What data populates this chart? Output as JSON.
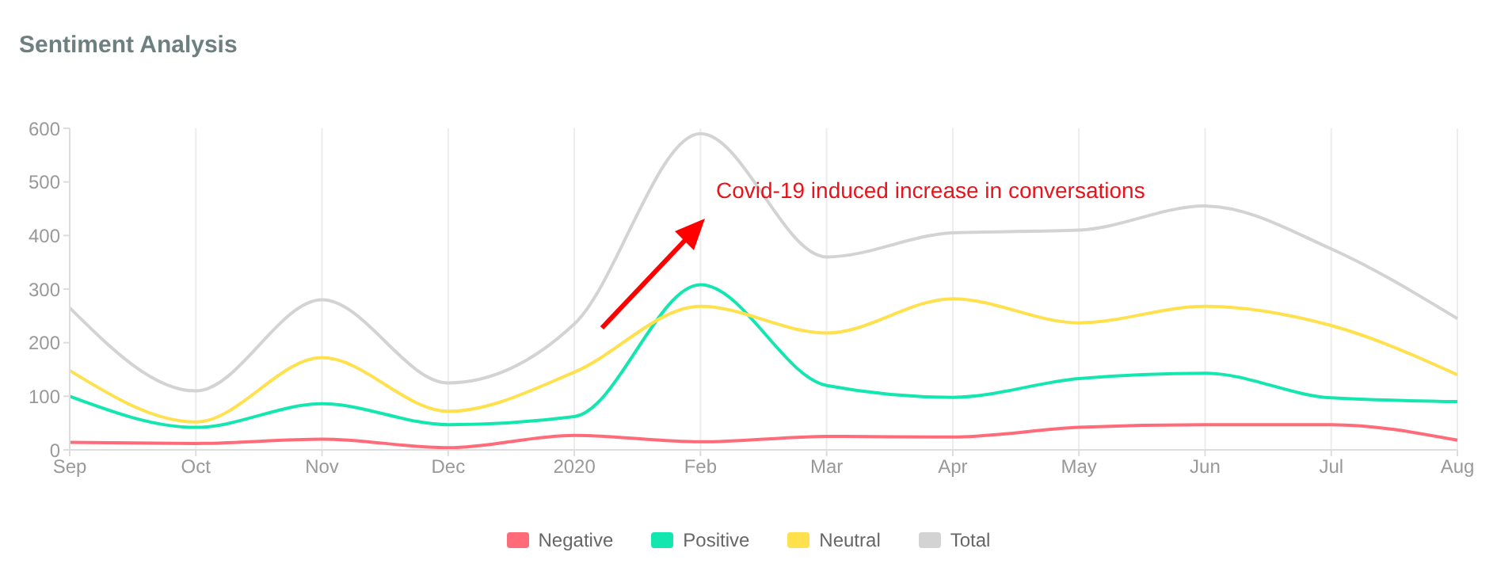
{
  "chart_data": {
    "type": "line",
    "title": "Sentiment Analysis",
    "categories": [
      "Sep",
      "Oct",
      "Nov",
      "Dec",
      "2020",
      "Feb",
      "Mar",
      "Apr",
      "May",
      "Jun",
      "Jul",
      "Aug"
    ],
    "series": [
      {
        "name": "Negative",
        "color": "#ff6b78",
        "values": [
          14,
          12,
          20,
          4,
          27,
          15,
          25,
          24,
          42,
          47,
          47,
          18
        ]
      },
      {
        "name": "Positive",
        "color": "#14e6b0",
        "values": [
          100,
          42,
          86,
          47,
          62,
          308,
          120,
          98,
          133,
          143,
          97,
          90
        ]
      },
      {
        "name": "Neutral",
        "color": "#ffe04d",
        "values": [
          148,
          52,
          172,
          72,
          145,
          268,
          218,
          282,
          237,
          268,
          232,
          140
        ]
      },
      {
        "name": "Total",
        "color": "#d3d3d3",
        "values": [
          265,
          110,
          280,
          125,
          235,
          590,
          360,
          405,
          410,
          455,
          375,
          245
        ]
      }
    ],
    "ylim": [
      0,
      600
    ],
    "yticks": [
      0,
      100,
      200,
      300,
      400,
      500,
      600
    ],
    "grid": "x",
    "legend": "bottom",
    "marker": "none",
    "line_style": "solid",
    "annotations": [
      "Covid-19 induced increase in conversations"
    ]
  }
}
